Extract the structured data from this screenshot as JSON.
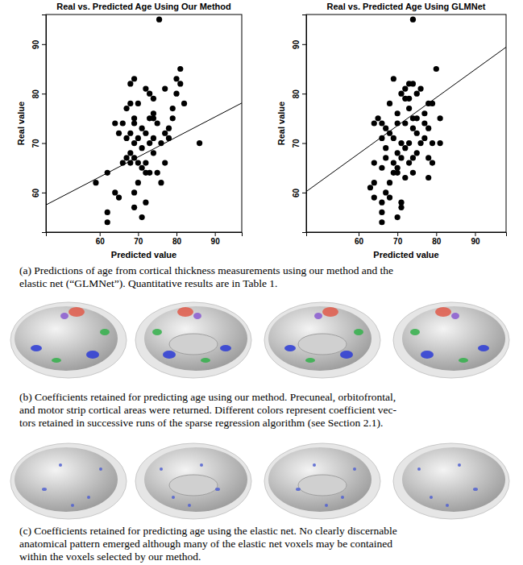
{
  "chart_data": [
    {
      "type": "scatter",
      "title": "Real vs. Predicted Age Using Our Method",
      "x_label": "Predicted value",
      "y_label": "Real value",
      "x": [
        75.5,
        81,
        80,
        69,
        68,
        81,
        72,
        77,
        80,
        73,
        68,
        74,
        70,
        82,
        79,
        67,
        74,
        69,
        73,
        74,
        79,
        66,
        69,
        75,
        78,
        64,
        71,
        68,
        72,
        65,
        77,
        70,
        67,
        74,
        78,
        69,
        76,
        86,
        73,
        68,
        71,
        67,
        69,
        74,
        70,
        72,
        66,
        77,
        68,
        71,
        73,
        72,
        75,
        62,
        76,
        59,
        70,
        64,
        69,
        65,
        72,
        69,
        62,
        71,
        62
      ],
      "values": [
        95,
        85,
        83,
        83,
        82,
        82,
        81,
        81,
        80,
        80,
        78,
        79,
        78,
        78,
        77,
        77,
        76,
        75,
        75,
        75,
        75,
        74,
        74,
        74,
        73,
        74,
        73,
        72,
        72,
        72,
        72,
        71,
        71,
        71,
        71,
        70,
        70,
        70,
        70,
        68,
        69,
        67,
        67,
        68,
        66,
        66,
        66,
        66,
        66,
        65,
        64,
        64,
        64,
        64,
        62,
        62,
        62,
        60,
        60,
        59,
        58,
        57,
        56,
        55,
        54
      ],
      "xlim": [
        46,
        97
      ],
      "ylim": [
        52,
        96
      ],
      "xticks": [
        60,
        70,
        80,
        90
      ],
      "yticks": [
        60,
        70,
        80,
        90
      ],
      "reference_line": {
        "x": [
          46,
          97
        ],
        "y": [
          57.5,
          78.1
        ]
      }
    },
    {
      "type": "scatter",
      "title": "Real vs. Predicted Age Using GLMNet",
      "x_label": "Predicted value",
      "y_label": "Real value",
      "x": [
        74,
        80,
        69,
        73,
        74,
        72,
        76,
        71,
        75,
        72,
        73,
        78,
        79,
        68,
        73,
        77,
        70,
        65,
        74,
        75,
        77,
        66,
        70,
        72,
        64,
        81,
        67,
        74,
        78,
        68,
        75,
        69,
        77,
        66,
        71,
        76,
        79,
        81,
        73,
        67,
        72,
        70,
        75,
        67,
        71,
        74,
        78,
        64,
        69,
        73,
        79,
        70,
        66,
        70,
        74,
        69,
        72,
        78,
        64,
        68,
        63,
        67,
        68,
        64,
        66,
        71,
        71,
        66,
        70,
        66
      ],
      "values": [
        95,
        85,
        83,
        82,
        82,
        81,
        81,
        80,
        80,
        79,
        79,
        78,
        78,
        78,
        77,
        76,
        76,
        75,
        75,
        75,
        74,
        74,
        74,
        74,
        74,
        75,
        73,
        73,
        73,
        72,
        72,
        71,
        71,
        71,
        70,
        70,
        70,
        70,
        70,
        69,
        69,
        68,
        68,
        67,
        67,
        67,
        67,
        66,
        66,
        66,
        66,
        65,
        65,
        64,
        64,
        64,
        63,
        63,
        62,
        62,
        61,
        60,
        59,
        59,
        58,
        58,
        57,
        56,
        55,
        54
      ],
      "xlim": [
        46.5,
        98
      ],
      "ylim": [
        52,
        96
      ],
      "xticks": [
        60,
        70,
        80,
        90
      ],
      "yticks": [
        60,
        70,
        80,
        90
      ],
      "reference_line": {
        "x": [
          46.5,
          98
        ],
        "y": [
          60.2,
          89.4
        ]
      }
    }
  ],
  "captions": {
    "a": [
      "(a) Predictions of age from cortical thickness measurements using our method and the",
      "elastic net (“GLMNet”). Quantitative results are in Table 1."
    ],
    "b": [
      "(b) Coefficients retained for predicting age using our method. Precuneal, orbitofrontal,",
      "and motor strip cortical areas were returned. Different colors represent coefficient vec-",
      "tors retained in successive runs of the sparse regression algorithm (see Section 2.1)."
    ],
    "c": [
      "(c) Coefficients retained for predicting age using the elastic net. No clearly discernable",
      "anatomical pattern emerged although many of the elastic net voxels may be contained",
      "within the voxels selected by our method."
    ]
  }
}
